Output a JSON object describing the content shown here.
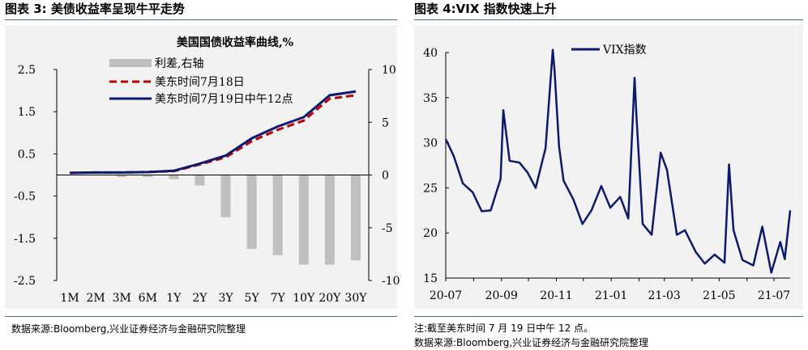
{
  "left_panel": {
    "title": "图表 3:  美债收益率呈现牛平走势",
    "source": "数据来源:Bloomberg,兴业证券经济与金融研究院整理"
  },
  "right_panel": {
    "title": "图表 4:VIX 指数快速上升",
    "note": "注:截至美东时间 7 月 19 日中午 12 点。",
    "source": "数据来源:Bloomberg,兴业证券经济与金融研究院整理"
  },
  "colors": {
    "navy": "#0b1a6e",
    "red": "#c00000",
    "gray_bar": "#bfbfbf",
    "plot_bg": "#f2f2f2"
  },
  "chart_data": [
    {
      "type": "bar+line",
      "title": "美国国债收益率曲线,%",
      "categories": [
        "1M",
        "2M",
        "3M",
        "6M",
        "1Y",
        "2Y",
        "3Y",
        "5Y",
        "7Y",
        "10Y",
        "20Y",
        "30Y"
      ],
      "series": [
        {
          "name": "利差,右轴",
          "kind": "bar",
          "axis": "right",
          "values": [
            0,
            0,
            -0.2,
            -0.2,
            -0.4,
            -1.0,
            -4.0,
            -7.0,
            -7.6,
            -8.5,
            -8.5,
            -8.1
          ]
        },
        {
          "name": "美东时间7月18日",
          "kind": "line",
          "style": "dashed",
          "axis": "left",
          "values": [
            0.05,
            0.06,
            0.06,
            0.07,
            0.09,
            0.25,
            0.42,
            0.8,
            1.07,
            1.29,
            1.81,
            1.89
          ]
        },
        {
          "name": "美东时间7月19日中午12点",
          "kind": "line",
          "style": "solid",
          "axis": "left",
          "values": [
            0.05,
            0.06,
            0.06,
            0.07,
            0.1,
            0.27,
            0.46,
            0.87,
            1.15,
            1.37,
            1.89,
            1.98
          ]
        }
      ],
      "ylim_left": [
        -2.5,
        2.5
      ],
      "ylim_right": [
        -10,
        10
      ],
      "yticks_left": [
        "2.5",
        "1.5",
        "0.5",
        "-0.5",
        "-1.5",
        "-2.5"
      ],
      "yticks_right": [
        "10",
        "5",
        "0",
        "-5",
        "-10"
      ],
      "legend_position": "top-left",
      "grid": false
    },
    {
      "type": "line",
      "series": [
        {
          "name": "VIX指数",
          "x": [
            "2020-07-01",
            "2020-07-10",
            "2020-07-20",
            "2020-07-31",
            "2020-08-10",
            "2020-08-20",
            "2020-08-31",
            "2020-09-03",
            "2020-09-10",
            "2020-09-21",
            "2020-09-30",
            "2020-10-09",
            "2020-10-20",
            "2020-10-28",
            "2020-10-30",
            "2020-11-04",
            "2020-11-09",
            "2020-11-20",
            "2020-11-30",
            "2020-12-10",
            "2020-12-21",
            "2020-12-31",
            "2021-01-11",
            "2021-01-20",
            "2021-01-27",
            "2021-01-29",
            "2021-02-05",
            "2021-02-15",
            "2021-02-25",
            "2021-03-04",
            "2021-03-15",
            "2021-03-24",
            "2021-04-05",
            "2021-04-15",
            "2021-04-26",
            "2021-05-07",
            "2021-05-12",
            "2021-05-17",
            "2021-05-27",
            "2021-06-08",
            "2021-06-18",
            "2021-06-28",
            "2021-07-08",
            "2021-07-13",
            "2021-07-19"
          ],
          "y": [
            30.4,
            28.5,
            25.5,
            24.5,
            22.4,
            22.5,
            26.0,
            33.6,
            28.0,
            27.8,
            26.7,
            25.0,
            29.4,
            40.3,
            38.0,
            29.6,
            25.8,
            23.7,
            21.0,
            22.5,
            25.2,
            22.8,
            24.0,
            21.6,
            37.2,
            33.1,
            21.0,
            19.8,
            28.9,
            27.0,
            19.8,
            20.3,
            17.9,
            16.6,
            17.6,
            16.7,
            27.6,
            20.3,
            17.0,
            16.4,
            20.7,
            15.6,
            19.0,
            17.1,
            22.5
          ]
        }
      ],
      "x_ticks": [
        "20-07",
        "20-09",
        "20-11",
        "21-01",
        "21-03",
        "21-05",
        "21-07"
      ],
      "ylim": [
        15,
        40
      ],
      "yticks": [
        "40",
        "35",
        "30",
        "25",
        "20",
        "15"
      ],
      "legend_position": "top-left",
      "grid": false
    }
  ]
}
